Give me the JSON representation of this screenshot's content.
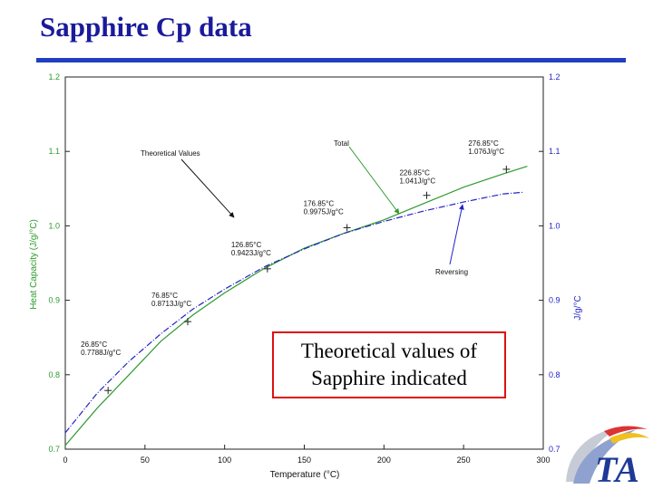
{
  "slide": {
    "title": "Sapphire Cp data"
  },
  "callout": {
    "line1": "Theoretical values of",
    "line2": "Sapphire indicated"
  },
  "logo": {
    "text": "TA"
  },
  "colors": {
    "title": "#1a1a9a",
    "rule": "#1f3fbf",
    "total": "#2e9a2e",
    "reversing": "#2323c8",
    "callout_border": "#dd1111"
  },
  "chart_data": {
    "type": "line",
    "xlabel": "Temperature (°C)",
    "ylabel_left": "Heat Capacity (J/g/°C)",
    "ylabel_right": "J/g/°C",
    "xlim": [
      0,
      300
    ],
    "ylim": [
      0.7,
      1.2
    ],
    "xticks": [
      "0",
      "50",
      "100",
      "150",
      "200",
      "250",
      "300"
    ],
    "yticks": [
      "0.7",
      "0.8",
      "0.9",
      "1.0",
      "1.1",
      "1.2"
    ],
    "series": [
      {
        "name": "Total",
        "color": "#2e9a2e",
        "x": [
          0,
          20,
          40,
          60,
          80,
          100,
          125,
          150,
          175,
          200,
          225,
          250,
          275,
          290
        ],
        "y": [
          0.705,
          0.755,
          0.8,
          0.845,
          0.88,
          0.91,
          0.943,
          0.97,
          0.99,
          1.008,
          1.03,
          1.052,
          1.07,
          1.08
        ]
      },
      {
        "name": "Reversing",
        "color": "#2323c8",
        "x": [
          0,
          20,
          40,
          60,
          80,
          100,
          125,
          150,
          175,
          200,
          225,
          250,
          275,
          287
        ],
        "y": [
          0.722,
          0.775,
          0.818,
          0.855,
          0.888,
          0.915,
          0.945,
          0.969,
          0.99,
          1.006,
          1.02,
          1.032,
          1.043,
          1.045
        ]
      }
    ],
    "theoretical_points": [
      {
        "x": 26.85,
        "y": 0.7788,
        "label": "26.85°C",
        "value": "0.7788J/g°C"
      },
      {
        "x": 76.85,
        "y": 0.8713,
        "label": "76.85°C",
        "value": "0.8713J/g°C"
      },
      {
        "x": 126.85,
        "y": 0.9423,
        "label": "126.85°C",
        "value": "0.9423J/g°C"
      },
      {
        "x": 176.85,
        "y": 0.9975,
        "label": "176.85°C",
        "value": "0.9975J/g°C"
      },
      {
        "x": 226.85,
        "y": 1.041,
        "label": "226.85°C",
        "value": "1.041J/g°C"
      },
      {
        "x": 276.85,
        "y": 1.076,
        "label": "276.85°C",
        "value": "1.076J/g°C"
      }
    ],
    "annotations": {
      "theoretical": "Theoretical Values",
      "total": "Total",
      "reversing": "Reversing"
    }
  }
}
